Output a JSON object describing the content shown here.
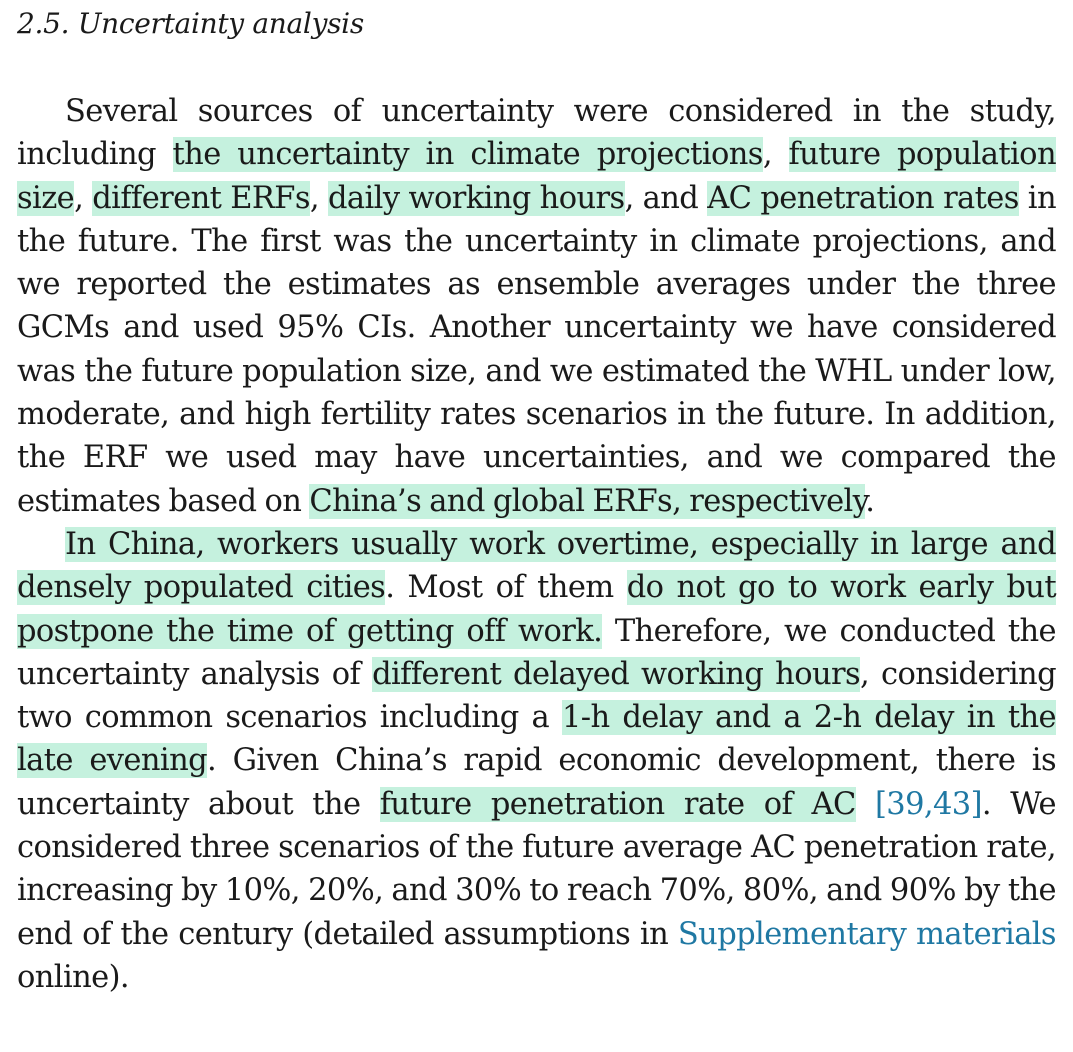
{
  "section": {
    "title": "2.5. Uncertainty analysis"
  },
  "paragraph1": {
    "s1": "Several sources of uncertainty were considered in the study, including ",
    "h1": "the uncertainty in climate projections",
    "s2": ", ",
    "h2": "future population size",
    "s3": ", ",
    "h3": "different ERFs",
    "s4": ", ",
    "h4": "daily working hours",
    "s5": ", and ",
    "h5": "AC penetration rates",
    "s6": " in the future. The first was the uncertainty in climate projections, and we reported the estimates as ensemble averages under the three GCMs and used 95% CIs. Another uncertainty we have considered was the future population size, and we estimated the WHL under low, moderate, and high fertility rates scenarios in the future. In addition, the ERF we used may have uncertainties, and we compared the estimates based on ",
    "h6": "China’s and global ERFs, respectively",
    "s7": "."
  },
  "paragraph2": {
    "h1": "In China, workers usually work overtime, especially in large and densely populated cities",
    "s1": ". Most of them ",
    "h2": "do not go to work early but postpone the time of getting off work.",
    "s2": " Therefore, we conducted the uncertainty analysis of ",
    "h3": "different delayed working hours",
    "s3": ", considering two common scenarios including a ",
    "h4": "1-h delay and a 2-h delay in the late evening",
    "s4": ". Given China’s rapid economic development, there is uncertainty about the ",
    "h5": "future penetration rate of AC",
    "s5": " ",
    "ref": "[39,43]",
    "s6": ". We considered three scenarios of the future average AC penetration rate, increasing by 10%, 20%, and 30% to reach 70%, 80%, and 90% by the end of the century (detailed assumptions in ",
    "link": "Supplementary materials",
    "s7": " online)."
  },
  "colors": {
    "highlight": "#c5f1de",
    "link": "#1f78a3",
    "text": "#1a1a1a"
  }
}
